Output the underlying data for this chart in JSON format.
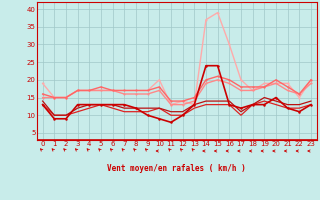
{
  "xlabel": "Vent moyen/en rafales ( km/h )",
  "bg_color": "#c8ecea",
  "grid_color": "#a0c8c8",
  "xlim": [
    -0.5,
    23.5
  ],
  "ylim": [
    3,
    42
  ],
  "yticks": [
    5,
    10,
    15,
    20,
    25,
    30,
    35,
    40
  ],
  "xticks": [
    0,
    1,
    2,
    3,
    4,
    5,
    6,
    7,
    8,
    9,
    10,
    11,
    12,
    13,
    14,
    15,
    16,
    17,
    18,
    19,
    20,
    21,
    22,
    23
  ],
  "series": [
    {
      "y": [
        13,
        9,
        9,
        13,
        13,
        13,
        13,
        13,
        12,
        10,
        9,
        8,
        10,
        13,
        24,
        24,
        13,
        12,
        13,
        13,
        15,
        12,
        11,
        13
      ],
      "color": "#cc0000",
      "lw": 1.2,
      "marker": "o",
      "ms": 1.8,
      "zorder": 5
    },
    {
      "y": [
        19,
        15,
        15,
        17,
        17,
        17,
        17,
        17,
        17,
        17,
        20,
        13,
        14,
        13,
        37,
        39,
        30,
        20,
        17,
        19,
        19,
        19,
        15,
        20
      ],
      "color": "#ffaaaa",
      "lw": 1.0,
      "marker": "o",
      "ms": 1.5,
      "zorder": 3
    },
    {
      "y": [
        13,
        10,
        10,
        11,
        12,
        13,
        12,
        11,
        11,
        11,
        12,
        10,
        10,
        12,
        13,
        13,
        13,
        10,
        13,
        14,
        13,
        12,
        12,
        13
      ],
      "color": "#dd2222",
      "lw": 0.9,
      "marker": null,
      "ms": 0,
      "zorder": 4
    },
    {
      "y": [
        14,
        10,
        10,
        12,
        13,
        13,
        13,
        12,
        12,
        12,
        12,
        11,
        11,
        13,
        14,
        14,
        14,
        11,
        13,
        15,
        14,
        13,
        13,
        14
      ],
      "color": "#bb1111",
      "lw": 0.9,
      "marker": null,
      "ms": 0,
      "zorder": 4
    },
    {
      "y": [
        15,
        15,
        15,
        17,
        17,
        17,
        17,
        16,
        16,
        16,
        17,
        13,
        13,
        14,
        19,
        20,
        19,
        17,
        17,
        18,
        19,
        17,
        16,
        19
      ],
      "color": "#ff8888",
      "lw": 1.0,
      "marker": "o",
      "ms": 1.5,
      "zorder": 3
    },
    {
      "y": [
        16,
        15,
        15,
        17,
        17,
        18,
        17,
        17,
        17,
        17,
        18,
        14,
        14,
        15,
        20,
        21,
        20,
        18,
        18,
        18,
        20,
        18,
        16,
        20
      ],
      "color": "#ff6666",
      "lw": 1.0,
      "marker": "o",
      "ms": 1.5,
      "zorder": 3
    }
  ],
  "wind_dirs": [
    225,
    225,
    225,
    225,
    225,
    225,
    225,
    225,
    225,
    225,
    270,
    225,
    225,
    225,
    270,
    270,
    270,
    270,
    270,
    270,
    270,
    270,
    270,
    270
  ]
}
